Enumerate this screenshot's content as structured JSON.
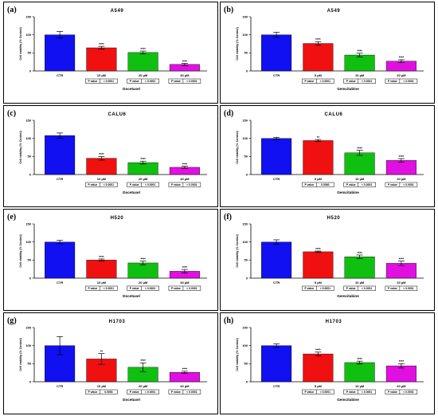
{
  "chart_data": [
    {
      "panel": "(a)",
      "title": "A549",
      "type": "bar",
      "ylabel": "Cell viability (% Control)",
      "xlabel": "Docetaxel",
      "ylim": [
        0,
        150
      ],
      "yticks": [
        0,
        50,
        100,
        150
      ],
      "categories": [
        "CTR",
        "10 µM",
        "20 µM",
        "40 µM"
      ],
      "values": [
        100,
        64,
        51,
        18
      ],
      "errors": [
        9,
        4,
        4,
        3
      ],
      "colors": [
        "#1010f0",
        "#f01010",
        "#10c010",
        "#e010e0"
      ],
      "stars": [
        "",
        "****",
        "****",
        "****"
      ],
      "pvalue_label": "P value",
      "pvalues": [
        "",
        "< 0.0001",
        "< 0.0001",
        "< 0.0001"
      ]
    },
    {
      "panel": "(b)",
      "title": "A549",
      "type": "bar",
      "ylabel": "Cell viability (% Control)",
      "xlabel": "Gemcitabine",
      "ylim": [
        0,
        150
      ],
      "yticks": [
        0,
        50,
        100,
        150
      ],
      "categories": [
        "CTR",
        "5 µM",
        "10 µM",
        "20 µM"
      ],
      "values": [
        100,
        76,
        44,
        27
      ],
      "errors": [
        7,
        5,
        5,
        4
      ],
      "colors": [
        "#1010f0",
        "#f01010",
        "#10c010",
        "#e010e0"
      ],
      "stars": [
        "",
        "****",
        "****",
        "****"
      ],
      "pvalue_label": "P value",
      "pvalues": [
        "",
        "< 0.0001",
        "< 0.0001",
        "< 0.0001"
      ]
    },
    {
      "panel": "(c)",
      "title": "CALU6",
      "type": "bar",
      "ylabel": "Cell viability (% Control)",
      "xlabel": "Docetaxel",
      "ylim": [
        0,
        150
      ],
      "yticks": [
        0,
        50,
        100,
        150
      ],
      "categories": [
        "CTR",
        "10 µM",
        "20 µM",
        "40 µM"
      ],
      "values": [
        108,
        45,
        33,
        20
      ],
      "errors": [
        7,
        5,
        4,
        3
      ],
      "colors": [
        "#1010f0",
        "#f01010",
        "#10c010",
        "#e010e0"
      ],
      "stars": [
        "",
        "****",
        "****",
        "****"
      ],
      "pvalue_label": "P value",
      "pvalues": [
        "",
        "< 0.0001",
        "< 0.0001",
        "< 0.0001"
      ]
    },
    {
      "panel": "(d)",
      "title": "CALU6",
      "type": "bar",
      "ylabel": "Cell viability (% Control)",
      "xlabel": "Gemcitabine",
      "ylim": [
        0,
        150
      ],
      "yticks": [
        0,
        50,
        100,
        150
      ],
      "categories": [
        "CTR",
        "5 µM",
        "10 µM",
        "20 µM"
      ],
      "values": [
        100,
        94,
        60,
        39
      ],
      "errors": [
        3,
        3,
        7,
        5
      ],
      "colors": [
        "#1010f0",
        "#f01010",
        "#10c010",
        "#e010e0"
      ],
      "stars": [
        "",
        "**",
        "****",
        "****"
      ],
      "pvalue_label": "P value",
      "pvalues": [
        "",
        "0.0060",
        "< 0.0001",
        "< 0.0001"
      ]
    },
    {
      "panel": "(e)",
      "title": "H520",
      "type": "bar",
      "ylabel": "Cell viability (% Control)",
      "xlabel": "Docetaxel",
      "ylim": [
        0,
        150
      ],
      "yticks": [
        0,
        50,
        100,
        150
      ],
      "categories": [
        "CTR",
        "10 µM",
        "20 µM",
        "40 µM"
      ],
      "values": [
        100,
        50,
        42,
        19
      ],
      "errors": [
        5,
        3,
        5,
        5
      ],
      "colors": [
        "#1010f0",
        "#f01010",
        "#10c010",
        "#e010e0"
      ],
      "stars": [
        "",
        "****",
        "****",
        "****"
      ],
      "pvalue_label": "P value",
      "pvalues": [
        "",
        "< 0.0001",
        "< 0.0001",
        "< 0.0001"
      ]
    },
    {
      "panel": "(f)",
      "title": "H520",
      "type": "bar",
      "ylabel": "Cell viability (% Control)",
      "xlabel": "Gemcitabine",
      "ylim": [
        0,
        150
      ],
      "yticks": [
        0,
        50,
        100,
        150
      ],
      "categories": [
        "CTR",
        "5 µM",
        "10 µM",
        "20 µM"
      ],
      "values": [
        100,
        73,
        59,
        41
      ],
      "errors": [
        6,
        2,
        5,
        6
      ],
      "colors": [
        "#1010f0",
        "#f01010",
        "#10c010",
        "#e010e0"
      ],
      "stars": [
        "",
        "****",
        "****",
        "****"
      ],
      "pvalue_label": "P value",
      "pvalues": [
        "",
        "< 0.0001",
        "< 0.0001",
        "< 0.0001"
      ]
    },
    {
      "panel": "(g)",
      "title": "H1703",
      "type": "bar",
      "ylabel": "Cell viability (% Control)",
      "xlabel": "Docetaxel",
      "ylim": [
        0,
        150
      ],
      "yticks": [
        0,
        50,
        100,
        150
      ],
      "categories": [
        "CTR",
        "10 µM",
        "20 µM",
        "40 µM"
      ],
      "values": [
        100,
        63,
        40,
        26
      ],
      "errors": [
        25,
        15,
        12,
        3
      ],
      "colors": [
        "#1010f0",
        "#f01010",
        "#10c010",
        "#e010e0"
      ],
      "stars": [
        "",
        "**",
        "****",
        "****"
      ],
      "pvalue_label": "P value",
      "pvalues": [
        "",
        "0.0053",
        "< 0.0001",
        "< 0.0001"
      ]
    },
    {
      "panel": "(h)",
      "title": "H1703",
      "type": "bar",
      "ylabel": "Cell viability (% Control)",
      "xlabel": "Gemcitabine",
      "ylim": [
        0,
        150
      ],
      "yticks": [
        0,
        50,
        100,
        150
      ],
      "categories": [
        "CTR",
        "5 µM",
        "10 µM",
        "20 µM"
      ],
      "values": [
        100,
        77,
        53,
        44
      ],
      "errors": [
        5,
        5,
        4,
        6
      ],
      "colors": [
        "#1010f0",
        "#f01010",
        "#10c010",
        "#e010e0"
      ],
      "stars": [
        "",
        "****",
        "****",
        "****"
      ],
      "pvalue_label": "P value",
      "pvalues": [
        "",
        "< 0.0001",
        "< 0.0001",
        "< 0.0001"
      ]
    }
  ]
}
